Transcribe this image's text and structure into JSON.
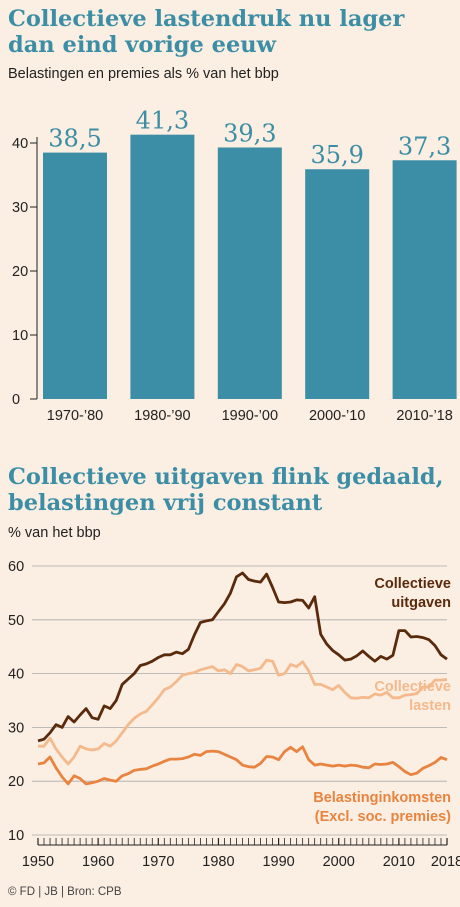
{
  "chart_data": [
    {
      "type": "bar",
      "title": "Collectieve lastendruk nu lager dan eind vorige eeuw",
      "subtitle": "Belastingen en premies als % van het bbp",
      "categories": [
        "1970-’80",
        "1980-’90",
        "1990-’00",
        "2000-’10",
        "2010-’18"
      ],
      "values": [
        38.5,
        41.3,
        39.3,
        35.9,
        37.3
      ],
      "value_labels": [
        "38,5",
        "41,3",
        "39,3",
        "35,9",
        "37,3"
      ],
      "y_ticks": [
        "0",
        "10",
        "20",
        "30",
        "40"
      ],
      "ylim": [
        0,
        45
      ],
      "grid": false,
      "bar_color": "#3b8ea5"
    },
    {
      "type": "line",
      "title": "Collectieve uitgaven flink gedaald, belastingen vrij constant",
      "subtitle": "% van het bbp",
      "xlim": [
        1950,
        2018
      ],
      "ylim": [
        10,
        60
      ],
      "x_ticks": [
        "1950",
        "1960",
        "1970",
        "1980",
        "1990",
        "2000",
        "2010",
        "2018"
      ],
      "y_ticks": [
        "10",
        "20",
        "30",
        "40",
        "50",
        "60"
      ],
      "grid": true,
      "series": [
        {
          "name": "Collectieve uitgaven",
          "label_lines": [
            "Collectieve",
            "uitgaven"
          ],
          "color": "#5a2a0c",
          "x": [
            1950,
            1951,
            1952,
            1953,
            1954,
            1955,
            1956,
            1957,
            1958,
            1959,
            1960,
            1961,
            1962,
            1963,
            1964,
            1965,
            1966,
            1967,
            1968,
            1969,
            1970,
            1971,
            1972,
            1973,
            1974,
            1975,
            1976,
            1977,
            1978,
            1979,
            1980,
            1981,
            1982,
            1983,
            1984,
            1985,
            1986,
            1987,
            1988,
            1989,
            1990,
            1991,
            1992,
            1993,
            1994,
            1995,
            1996,
            1997,
            1998,
            1999,
            2000,
            2001,
            2002,
            2003,
            2004,
            2005,
            2006,
            2007,
            2008,
            2009,
            2010,
            2011,
            2012,
            2013,
            2014,
            2015,
            2016,
            2017,
            2018
          ],
          "y": [
            27.5,
            27.8,
            29,
            30.5,
            30,
            32,
            31,
            32.3,
            33.5,
            31.8,
            31.5,
            34,
            33.5,
            35,
            38,
            39,
            40,
            41.5,
            41.8,
            42.3,
            43,
            43.5,
            43.5,
            44,
            43.7,
            44.5,
            47.2,
            49.5,
            49.8,
            50,
            51.5,
            53,
            55,
            58,
            58.7,
            57.5,
            57.2,
            57,
            58.5,
            56,
            53.3,
            53.2,
            53.3,
            53.7,
            53.6,
            52.2,
            54.3,
            47.3,
            45.5,
            44.3,
            43.5,
            42.5,
            42.7,
            43.3,
            44.2,
            43.2,
            42.3,
            43.2,
            42.7,
            43.4,
            48,
            48,
            46.8,
            46.9,
            46.7,
            46.3,
            45.2,
            43.5,
            42.7
          ]
        },
        {
          "name": "Collectieve lasten",
          "label_lines": [
            "Collectieve",
            "lasten"
          ],
          "color": "#f4b98c",
          "x": [
            1950,
            1951,
            1952,
            1953,
            1954,
            1955,
            1956,
            1957,
            1958,
            1959,
            1960,
            1961,
            1962,
            1963,
            1964,
            1965,
            1966,
            1967,
            1968,
            1969,
            1970,
            1971,
            1972,
            1973,
            1974,
            1975,
            1976,
            1977,
            1978,
            1979,
            1980,
            1981,
            1982,
            1983,
            1984,
            1985,
            1986,
            1987,
            1988,
            1989,
            1990,
            1991,
            1992,
            1993,
            1994,
            1995,
            1996,
            1997,
            1998,
            1999,
            2000,
            2001,
            2002,
            2003,
            2004,
            2005,
            2006,
            2007,
            2008,
            2009,
            2010,
            2011,
            2012,
            2013,
            2014,
            2015,
            2016,
            2017,
            2018
          ],
          "y": [
            26.5,
            26.5,
            28,
            26,
            24.5,
            23.2,
            24.5,
            26.5,
            26,
            25.8,
            26,
            27,
            26.5,
            27.5,
            29,
            30.5,
            31.7,
            32.5,
            33,
            34.2,
            35.5,
            37,
            37.5,
            38.5,
            39.7,
            40,
            40.2,
            40.7,
            41,
            41.3,
            40.5,
            40.7,
            40,
            41.7,
            41.3,
            40.5,
            40.7,
            41,
            42.5,
            42.3,
            39.7,
            40,
            41.7,
            41.3,
            42.2,
            40.5,
            38,
            38,
            37.5,
            37,
            37.8,
            36.5,
            35.5,
            35.4,
            35.6,
            35.5,
            36.2,
            36,
            36.5,
            35.5,
            35.5,
            36,
            36.1,
            36.3,
            37.5,
            37.5,
            38.8,
            38.8,
            38.9
          ]
        },
        {
          "name": "Belastinginkomsten (Excl. soc. premies)",
          "label_lines": [
            "Belastinginkomsten",
            "(Excl. soc. premies)"
          ],
          "color": "#e8843f",
          "x": [
            1950,
            1951,
            1952,
            1953,
            1954,
            1955,
            1956,
            1957,
            1958,
            1959,
            1960,
            1961,
            1962,
            1963,
            1964,
            1965,
            1966,
            1967,
            1968,
            1969,
            1970,
            1971,
            1972,
            1973,
            1974,
            1975,
            1976,
            1977,
            1978,
            1979,
            1980,
            1981,
            1982,
            1983,
            1984,
            1985,
            1986,
            1987,
            1988,
            1989,
            1990,
            1991,
            1992,
            1993,
            1994,
            1995,
            1996,
            1997,
            1998,
            1999,
            2000,
            2001,
            2002,
            2003,
            2004,
            2005,
            2006,
            2007,
            2008,
            2009,
            2010,
            2011,
            2012,
            2013,
            2014,
            2015,
            2016,
            2017,
            2018
          ],
          "y": [
            23.2,
            23.4,
            24.5,
            22.5,
            20.8,
            19.5,
            21,
            20.5,
            19.5,
            19.7,
            20,
            20.5,
            20.2,
            20,
            21,
            21.4,
            22,
            22.2,
            22.3,
            22.8,
            23.2,
            23.7,
            24.1,
            24.1,
            24.2,
            24.5,
            25,
            24.8,
            25.5,
            25.6,
            25.5,
            25,
            24.5,
            24,
            23,
            22.7,
            22.6,
            23.3,
            24.6,
            24.5,
            24,
            25.5,
            26.3,
            25.5,
            26.4,
            24,
            23,
            23.2,
            23,
            22.8,
            23,
            22.8,
            23,
            22.9,
            22.6,
            22.5,
            23.2,
            23.1,
            23.2,
            23.5,
            22.7,
            21.8,
            21.2,
            21.5,
            22.4,
            22.9,
            23.5,
            24.4,
            24
          ]
        }
      ]
    }
  ],
  "footer": "© FD | JB | Bron: CPB"
}
